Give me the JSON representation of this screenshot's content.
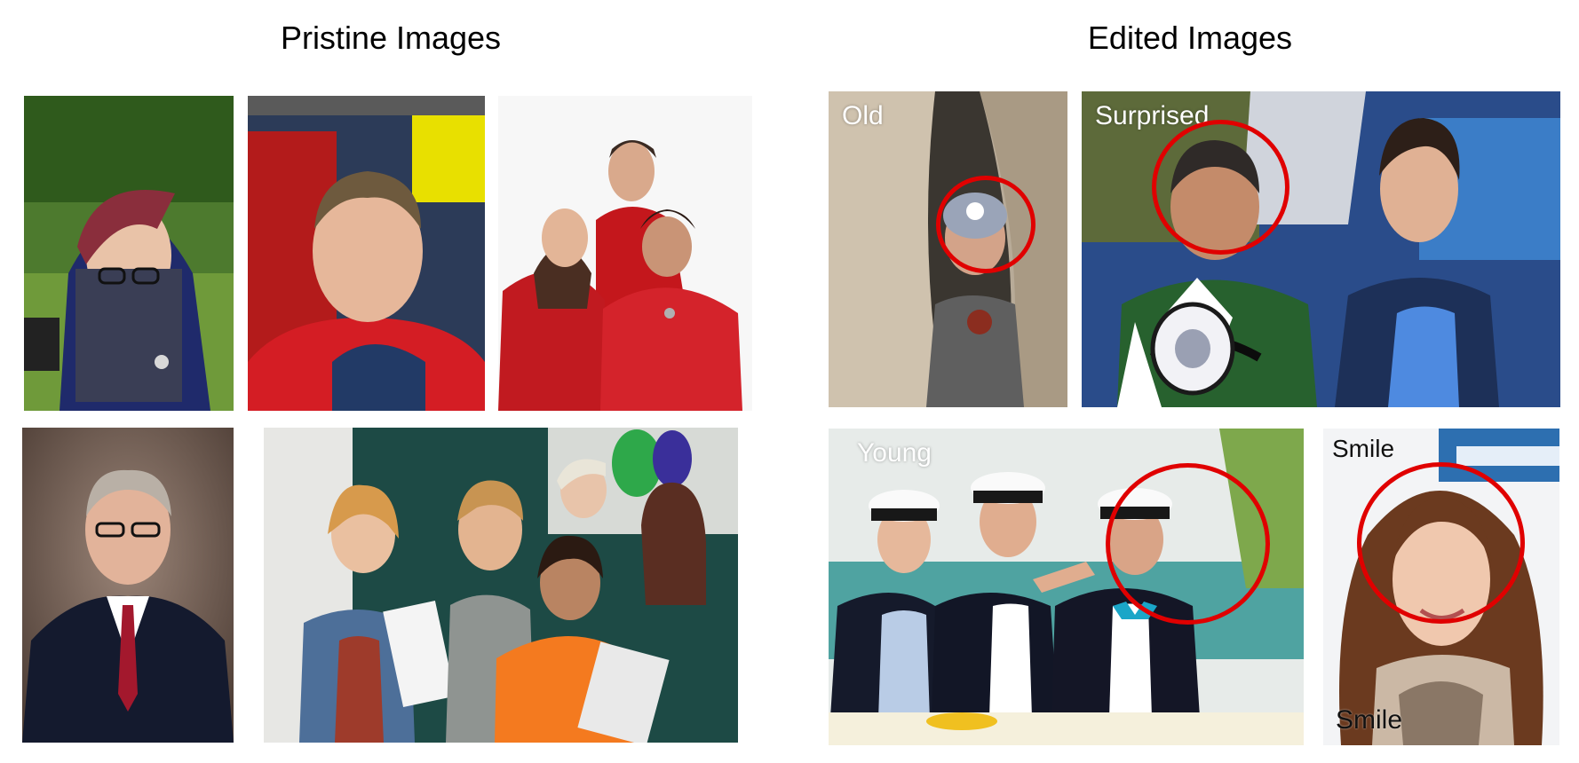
{
  "figure": {
    "pristine_title": "Pristine Images",
    "edited_title": "Edited Images"
  },
  "edited": {
    "old_label": "Old",
    "surprised_label": "Surprised",
    "young_label": "Young",
    "smile_label_top": "Smile",
    "smile_label_bottom": "Smile",
    "highlight_color": "#e00000"
  }
}
